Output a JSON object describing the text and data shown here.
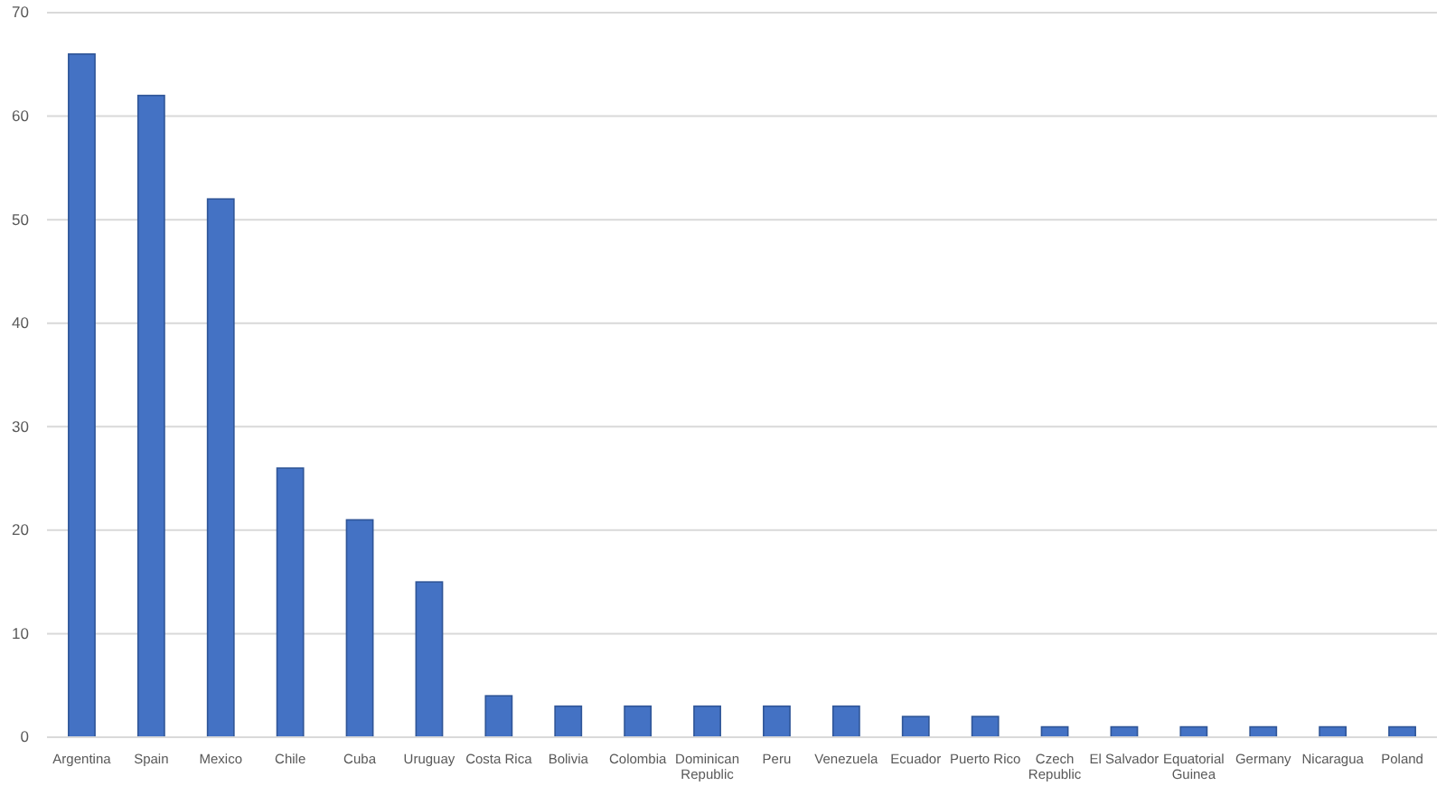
{
  "chart_data": {
    "type": "bar",
    "categories": [
      "Argentina",
      "Spain",
      "Mexico",
      "Chile",
      "Cuba",
      "Uruguay",
      "Costa Rica",
      "Bolivia",
      "Colombia",
      "Dominican Republic",
      "Peru",
      "Venezuela",
      "Ecuador",
      "Puerto Rico",
      "Czech Republic",
      "El Salvador",
      "Equatorial Guinea",
      "Germany",
      "Nicaragua",
      "Poland"
    ],
    "values": [
      66,
      62,
      52,
      26,
      21,
      15,
      4,
      3,
      3,
      3,
      3,
      3,
      2,
      2,
      1,
      1,
      1,
      1,
      1,
      1
    ],
    "color": "#4472c4",
    "ylim": [
      0,
      70
    ],
    "yticks": [
      0,
      10,
      20,
      30,
      40,
      50,
      60,
      70
    ],
    "grid": "y"
  }
}
